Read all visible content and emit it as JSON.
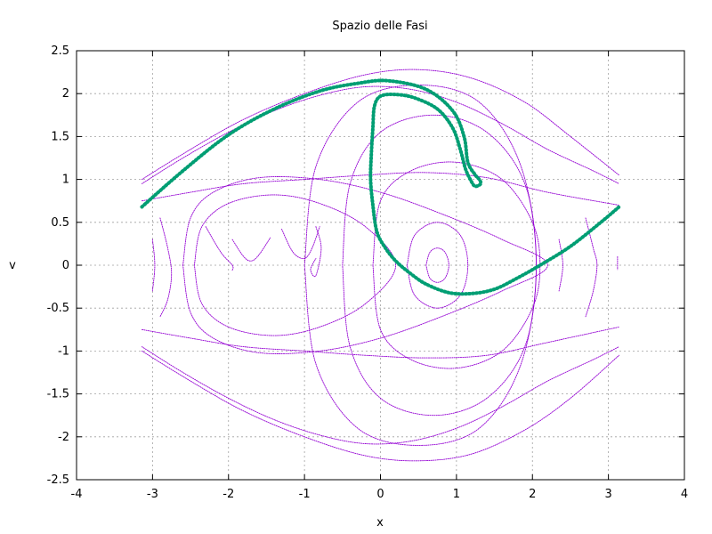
{
  "chart_data": {
    "type": "scatter",
    "title": "Spazio delle Fasi",
    "xlabel": "x",
    "ylabel": "v",
    "xlim": [
      -4,
      4
    ],
    "ylim": [
      -2.5,
      2.5
    ],
    "grid": true,
    "legend": "none",
    "x_ticks": [
      -4,
      -3,
      -2,
      -1,
      0,
      1,
      2,
      3,
      4
    ],
    "x_tick_labels": [
      "-4",
      "-3",
      "-2",
      "-1",
      "0",
      "1",
      "2",
      "3",
      "4"
    ],
    "y_ticks": [
      -2.5,
      -2,
      -1.5,
      -1,
      -0.5,
      0,
      0.5,
      1,
      1.5,
      2,
      2.5
    ],
    "y_tick_labels": [
      "-2.5",
      "-2",
      "-1.5",
      "-1",
      "-0.5",
      "0",
      "0.5",
      "1",
      "1.5",
      "2",
      "2.5"
    ],
    "colors": {
      "trajectories": "#9400d3",
      "highlight": "#009e73",
      "grid": "#a0a0a0"
    },
    "series": [
      {
        "kind": "trajectories",
        "color": "#9400d3",
        "paths": [
          [
            [
              -3.14,
              0.95
            ],
            [
              -2.6,
              1.25
            ],
            [
              -2.0,
              1.55
            ],
            [
              -1.4,
              1.8
            ],
            [
              -0.8,
              1.98
            ],
            [
              -0.2,
              2.08
            ],
            [
              0.4,
              2.05
            ],
            [
              1.0,
              1.9
            ],
            [
              1.6,
              1.65
            ],
            [
              2.2,
              1.35
            ],
            [
              2.8,
              1.1
            ],
            [
              3.14,
              0.95
            ]
          ],
          [
            [
              -3.14,
              -0.95
            ],
            [
              -2.6,
              -1.25
            ],
            [
              -2.0,
              -1.55
            ],
            [
              -1.4,
              -1.8
            ],
            [
              -0.8,
              -1.98
            ],
            [
              -0.2,
              -2.08
            ],
            [
              0.4,
              -2.05
            ],
            [
              1.0,
              -1.9
            ],
            [
              1.6,
              -1.65
            ],
            [
              2.2,
              -1.35
            ],
            [
              2.8,
              -1.1
            ],
            [
              3.14,
              -0.95
            ]
          ],
          [
            [
              -3.14,
              1.0
            ],
            [
              -2.5,
              1.35
            ],
            [
              -1.8,
              1.7
            ],
            [
              -1.0,
              2.0
            ],
            [
              -0.2,
              2.22
            ],
            [
              0.5,
              2.28
            ],
            [
              1.2,
              2.18
            ],
            [
              1.9,
              1.9
            ],
            [
              2.5,
              1.5
            ],
            [
              3.14,
              1.05
            ]
          ],
          [
            [
              -3.14,
              -1.0
            ],
            [
              -2.5,
              -1.35
            ],
            [
              -1.8,
              -1.7
            ],
            [
              -1.0,
              -2.0
            ],
            [
              -0.2,
              -2.22
            ],
            [
              0.5,
              -2.28
            ],
            [
              1.2,
              -2.2
            ],
            [
              1.9,
              -1.92
            ],
            [
              2.5,
              -1.55
            ],
            [
              3.14,
              -1.05
            ]
          ],
          [
            [
              -3.14,
              0.75
            ],
            [
              -2.5,
              0.85
            ],
            [
              -1.8,
              0.95
            ],
            [
              -1.0,
              1.0
            ],
            [
              -0.2,
              1.05
            ],
            [
              0.6,
              1.08
            ],
            [
              1.4,
              1.02
            ],
            [
              2.2,
              0.85
            ],
            [
              3.14,
              0.7
            ]
          ],
          [
            [
              -3.14,
              -0.75
            ],
            [
              -2.5,
              -0.85
            ],
            [
              -1.8,
              -0.95
            ],
            [
              -1.0,
              -1.0
            ],
            [
              -0.2,
              -1.05
            ],
            [
              0.6,
              -1.08
            ],
            [
              1.4,
              -1.05
            ],
            [
              2.2,
              -0.9
            ],
            [
              3.14,
              -0.72
            ]
          ],
          [
            [
              -2.6,
              0.0
            ],
            [
              -2.5,
              0.55
            ],
            [
              -2.2,
              0.85
            ],
            [
              -1.6,
              1.02
            ],
            [
              -0.8,
              1.0
            ],
            [
              0.0,
              0.85
            ],
            [
              0.8,
              0.6
            ],
            [
              1.6,
              0.3
            ],
            [
              2.2,
              0.0
            ],
            [
              1.6,
              -0.3
            ],
            [
              0.8,
              -0.6
            ],
            [
              0.0,
              -0.85
            ],
            [
              -0.8,
              -1.0
            ],
            [
              -1.6,
              -1.02
            ],
            [
              -2.2,
              -0.85
            ],
            [
              -2.5,
              -0.55
            ],
            [
              -2.6,
              0.0
            ]
          ],
          [
            [
              -2.45,
              0.0
            ],
            [
              -2.35,
              0.45
            ],
            [
              -2.0,
              0.72
            ],
            [
              -1.4,
              0.82
            ],
            [
              -0.8,
              0.72
            ],
            [
              -0.2,
              0.45
            ],
            [
              0.2,
              0.0
            ],
            [
              -0.2,
              -0.45
            ],
            [
              -0.8,
              -0.72
            ],
            [
              -1.4,
              -0.82
            ],
            [
              -2.0,
              -0.72
            ],
            [
              -2.35,
              -0.45
            ],
            [
              -2.45,
              0.0
            ]
          ],
          [
            [
              -0.1,
              0.0
            ],
            [
              0.0,
              0.75
            ],
            [
              0.4,
              1.1
            ],
            [
              1.0,
              1.2
            ],
            [
              1.6,
              1.0
            ],
            [
              2.0,
              0.5
            ],
            [
              2.1,
              0.0
            ],
            [
              2.0,
              -0.5
            ],
            [
              1.6,
              -1.0
            ],
            [
              1.0,
              -1.2
            ],
            [
              0.4,
              -1.1
            ],
            [
              0.0,
              -0.75
            ],
            [
              -0.1,
              0.0
            ]
          ],
          [
            [
              -0.5,
              0.0
            ],
            [
              -0.4,
              0.95
            ],
            [
              0.0,
              1.55
            ],
            [
              0.7,
              1.75
            ],
            [
              1.4,
              1.55
            ],
            [
              1.9,
              0.95
            ],
            [
              2.05,
              0.0
            ],
            [
              1.9,
              -0.95
            ],
            [
              1.4,
              -1.55
            ],
            [
              0.7,
              -1.75
            ],
            [
              0.0,
              -1.55
            ],
            [
              -0.4,
              -0.95
            ],
            [
              -0.5,
              0.0
            ]
          ],
          [
            [
              -1.0,
              0.0
            ],
            [
              -0.85,
              1.15
            ],
            [
              -0.3,
              1.9
            ],
            [
              0.5,
              2.1
            ],
            [
              1.3,
              1.9
            ],
            [
              1.85,
              1.15
            ],
            [
              2.05,
              0.0
            ],
            [
              1.85,
              -1.15
            ],
            [
              1.3,
              -1.9
            ],
            [
              0.5,
              -2.1
            ],
            [
              -0.3,
              -1.9
            ],
            [
              -0.85,
              -1.15
            ],
            [
              -1.0,
              0.0
            ]
          ],
          [
            [
              0.35,
              0.0
            ],
            [
              0.45,
              0.35
            ],
            [
              0.75,
              0.5
            ],
            [
              1.05,
              0.35
            ],
            [
              1.15,
              0.0
            ],
            [
              1.05,
              -0.35
            ],
            [
              0.75,
              -0.5
            ],
            [
              0.45,
              -0.35
            ],
            [
              0.35,
              0.0
            ]
          ],
          [
            [
              0.6,
              0.0
            ],
            [
              0.65,
              0.15
            ],
            [
              0.75,
              0.2
            ],
            [
              0.85,
              0.15
            ],
            [
              0.9,
              0.0
            ],
            [
              0.85,
              -0.15
            ],
            [
              0.75,
              -0.2
            ],
            [
              0.65,
              -0.15
            ],
            [
              0.6,
              0.0
            ]
          ],
          [
            [
              -2.9,
              0.55
            ],
            [
              -2.8,
              0.2
            ],
            [
              -2.75,
              -0.1
            ],
            [
              -2.8,
              -0.4
            ],
            [
              -2.9,
              -0.6
            ]
          ],
          [
            [
              -3.0,
              0.3
            ],
            [
              -2.97,
              0.0
            ],
            [
              -3.0,
              -0.3
            ]
          ],
          [
            [
              -2.3,
              0.45
            ],
            [
              -2.1,
              0.15
            ],
            [
              -1.95,
              0.0
            ],
            [
              -1.95,
              -0.06
            ]
          ],
          [
            [
              -1.95,
              0.3
            ],
            [
              -1.8,
              0.1
            ],
            [
              -1.7,
              0.05
            ],
            [
              -1.6,
              0.12
            ],
            [
              -1.45,
              0.32
            ]
          ],
          [
            [
              -1.3,
              0.42
            ],
            [
              -1.15,
              0.15
            ],
            [
              -1.0,
              0.08
            ],
            [
              -0.9,
              0.2
            ],
            [
              -0.8,
              0.45
            ]
          ],
          [
            [
              -0.85,
              0.45
            ],
            [
              -0.78,
              0.2
            ],
            [
              -0.85,
              -0.12
            ],
            [
              -0.92,
              -0.05
            ],
            [
              -0.85,
              0.08
            ]
          ],
          [
            [
              2.35,
              0.3
            ],
            [
              2.4,
              0.0
            ],
            [
              2.35,
              -0.3
            ]
          ],
          [
            [
              2.7,
              0.55
            ],
            [
              2.8,
              0.2
            ],
            [
              2.85,
              0.0
            ],
            [
              2.8,
              -0.3
            ],
            [
              2.7,
              -0.6
            ]
          ],
          [
            [
              3.12,
              0.1
            ],
            [
              3.12,
              -0.05
            ]
          ]
        ]
      },
      {
        "kind": "highlight",
        "color": "#009e73",
        "paths": [
          [
            [
              -3.14,
              0.68
            ],
            [
              -2.6,
              1.1
            ],
            [
              -2.0,
              1.52
            ],
            [
              -1.4,
              1.82
            ],
            [
              -0.8,
              2.03
            ],
            [
              -0.3,
              2.12
            ],
            [
              0.1,
              2.15
            ],
            [
              0.6,
              2.05
            ],
            [
              0.95,
              1.8
            ],
            [
              1.1,
              1.5
            ],
            [
              1.15,
              1.2
            ],
            [
              1.25,
              1.05
            ],
            [
              1.3,
              1.0
            ],
            [
              1.32,
              0.95
            ],
            [
              1.25,
              0.92
            ],
            [
              1.2,
              0.97
            ],
            [
              1.12,
              1.12
            ],
            [
              1.05,
              1.35
            ],
            [
              0.95,
              1.6
            ],
            [
              0.75,
              1.82
            ],
            [
              0.45,
              1.95
            ],
            [
              0.2,
              1.99
            ],
            [
              0.0,
              1.97
            ],
            [
              -0.08,
              1.85
            ],
            [
              -0.1,
              1.6
            ],
            [
              -0.12,
              1.3
            ],
            [
              -0.13,
              1.0
            ],
            [
              -0.1,
              0.7
            ],
            [
              -0.05,
              0.4
            ],
            [
              0.05,
              0.22
            ],
            [
              0.2,
              0.05
            ],
            [
              0.4,
              -0.1
            ],
            [
              0.6,
              -0.22
            ],
            [
              0.9,
              -0.32
            ],
            [
              1.2,
              -0.33
            ],
            [
              1.5,
              -0.28
            ],
            [
              1.8,
              -0.15
            ],
            [
              2.1,
              0.0
            ],
            [
              2.5,
              0.22
            ],
            [
              2.9,
              0.5
            ],
            [
              3.14,
              0.68
            ]
          ]
        ]
      }
    ]
  }
}
